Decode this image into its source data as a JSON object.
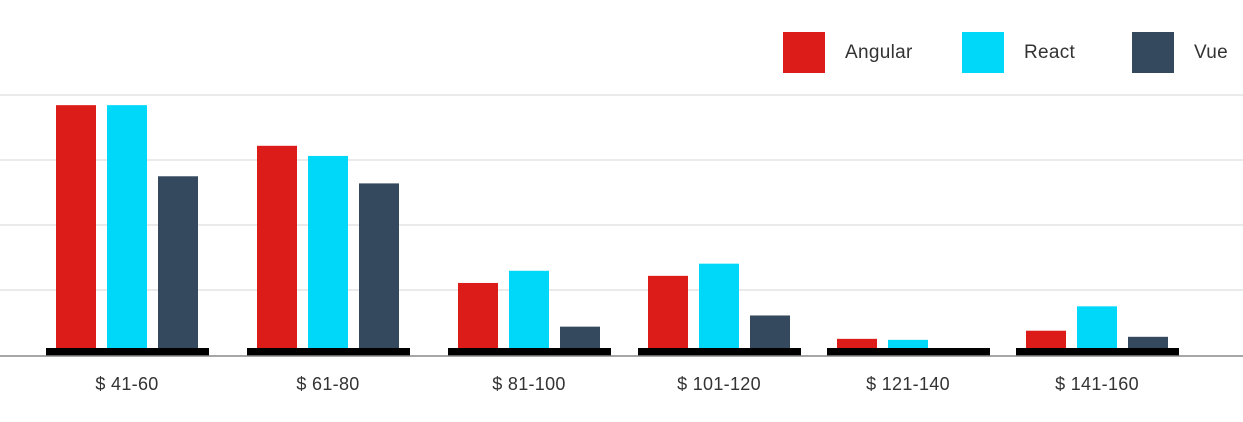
{
  "chart_data": {
    "type": "bar",
    "categories": [
      "$ 41-60",
      "$ 61-80",
      "$ 81-100",
      "$ 101-120",
      "$ 121-140",
      "$ 141-160"
    ],
    "series": [
      {
        "name": "Angular",
        "color": "#dc1c18",
        "values": [
          24,
          20,
          6.5,
          7.2,
          1,
          1.8
        ]
      },
      {
        "name": "React",
        "color": "#00d8fa",
        "values": [
          24,
          19,
          7.7,
          8.4,
          0.9,
          4.2
        ]
      },
      {
        "name": "Vue",
        "color": "#34495e",
        "values": [
          17,
          16.3,
          2.2,
          3.3,
          0,
          1.2
        ]
      }
    ],
    "ylim": [
      0,
      25
    ],
    "grid": true,
    "legend": "top-right",
    "xlabel": "",
    "ylabel": ""
  }
}
